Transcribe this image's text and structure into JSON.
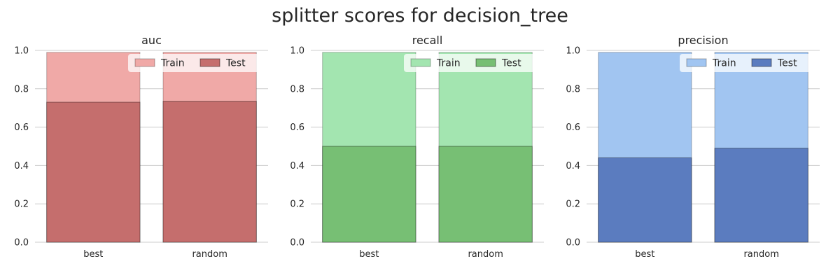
{
  "figure": {
    "title": "splitter scores for decision_tree"
  },
  "legend_labels": {
    "train": "Train",
    "test": "Test"
  },
  "chart_data": [
    {
      "type": "bar",
      "title": "auc",
      "categories": [
        "best",
        "random"
      ],
      "series": [
        {
          "name": "Train",
          "values": [
            0.99,
            0.99
          ]
        },
        {
          "name": "Test",
          "values": [
            0.73,
            0.735
          ]
        }
      ],
      "ylim": [
        0,
        1.0
      ],
      "yticks": [
        "0.0",
        "0.2",
        "0.4",
        "0.6",
        "0.8",
        "1.0"
      ],
      "grid": "y",
      "legend": "top-right",
      "colors": {
        "train": "#f0a9a7",
        "test": "#c56e6d"
      }
    },
    {
      "type": "bar",
      "title": "recall",
      "categories": [
        "best",
        "random"
      ],
      "series": [
        {
          "name": "Train",
          "values": [
            0.99,
            0.99
          ]
        },
        {
          "name": "Test",
          "values": [
            0.5,
            0.5
          ]
        }
      ],
      "ylim": [
        0,
        1.0
      ],
      "yticks": [
        "0.0",
        "0.2",
        "0.4",
        "0.6",
        "0.8",
        "1.0"
      ],
      "grid": "y",
      "legend": "top-right",
      "colors": {
        "train": "#a3e5b0",
        "test": "#77bf74"
      }
    },
    {
      "type": "bar",
      "title": "precision",
      "categories": [
        "best",
        "random"
      ],
      "series": [
        {
          "name": "Train",
          "values": [
            0.99,
            0.99
          ]
        },
        {
          "name": "Test",
          "values": [
            0.44,
            0.49
          ]
        }
      ],
      "ylim": [
        0,
        1.0
      ],
      "yticks": [
        "0.0",
        "0.2",
        "0.4",
        "0.6",
        "0.8",
        "1.0"
      ],
      "grid": "y",
      "legend": "top-right",
      "colors": {
        "train": "#a1c5f1",
        "test": "#5b7cbf"
      }
    }
  ]
}
